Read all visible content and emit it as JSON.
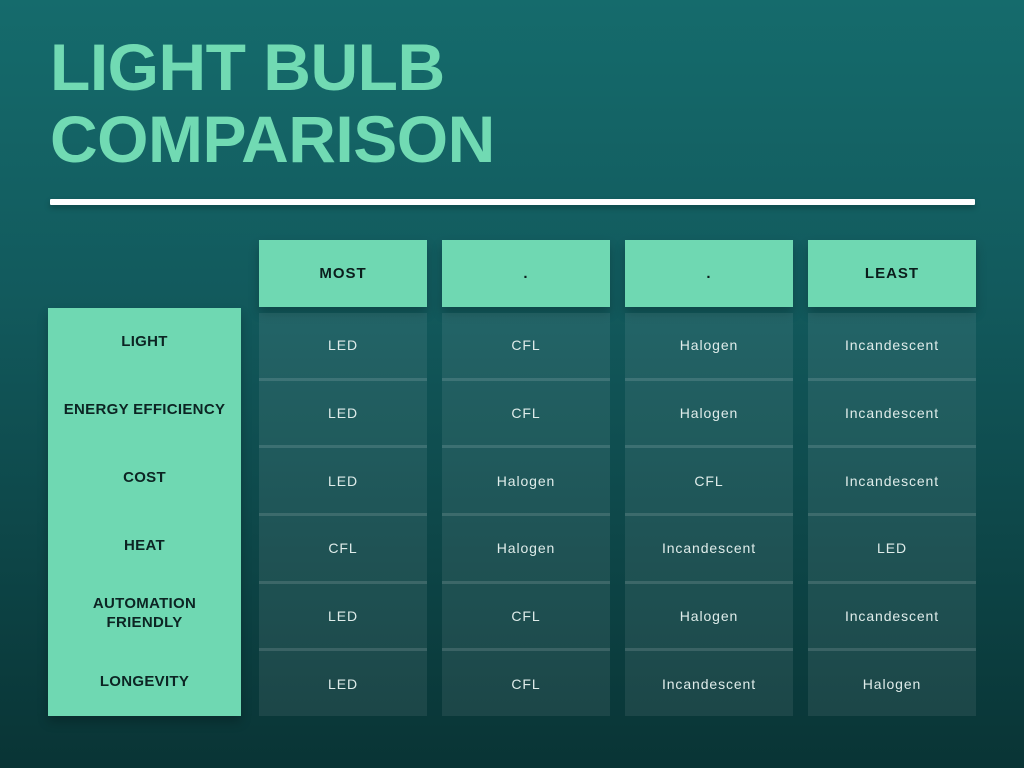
{
  "title": {
    "line1": "LIGHT BULB",
    "line2": "COMPARISON"
  },
  "colors": {
    "background_top": "#156b6c",
    "background_bottom": "#093435",
    "accent_mint": "#6fd8b2",
    "title_text": "#71dab3",
    "header_text": "#0b1d1c",
    "row_label_text": "#0c2423",
    "cell_text": "#dfecea",
    "title_rule": "#ffffff"
  },
  "chart_data": {
    "type": "table",
    "title": "LIGHT BULB COMPARISON",
    "column_headers": [
      "MOST",
      ".",
      ".",
      "LEAST"
    ],
    "rows": [
      {
        "label": "LIGHT",
        "values": [
          "LED",
          "CFL",
          "Halogen",
          "Incandescent"
        ]
      },
      {
        "label": "ENERGY EFFICIENCY",
        "values": [
          "LED",
          "CFL",
          "Halogen",
          "Incandescent"
        ]
      },
      {
        "label": "COST",
        "values": [
          "LED",
          "Halogen",
          "CFL",
          "Incandescent"
        ]
      },
      {
        "label": "HEAT",
        "values": [
          "CFL",
          "Halogen",
          "Incandescent",
          "LED"
        ]
      },
      {
        "label": "AUTOMATION FRIENDLY",
        "values": [
          "LED",
          "CFL",
          "Halogen",
          "Incandescent"
        ]
      },
      {
        "label": "LONGEVITY",
        "values": [
          "LED",
          "CFL",
          "Incandescent",
          "Halogen"
        ]
      }
    ],
    "layout": {
      "ranking_direction": "most-to-least, left-to-right",
      "legend_position": "none",
      "grid": "off"
    }
  }
}
